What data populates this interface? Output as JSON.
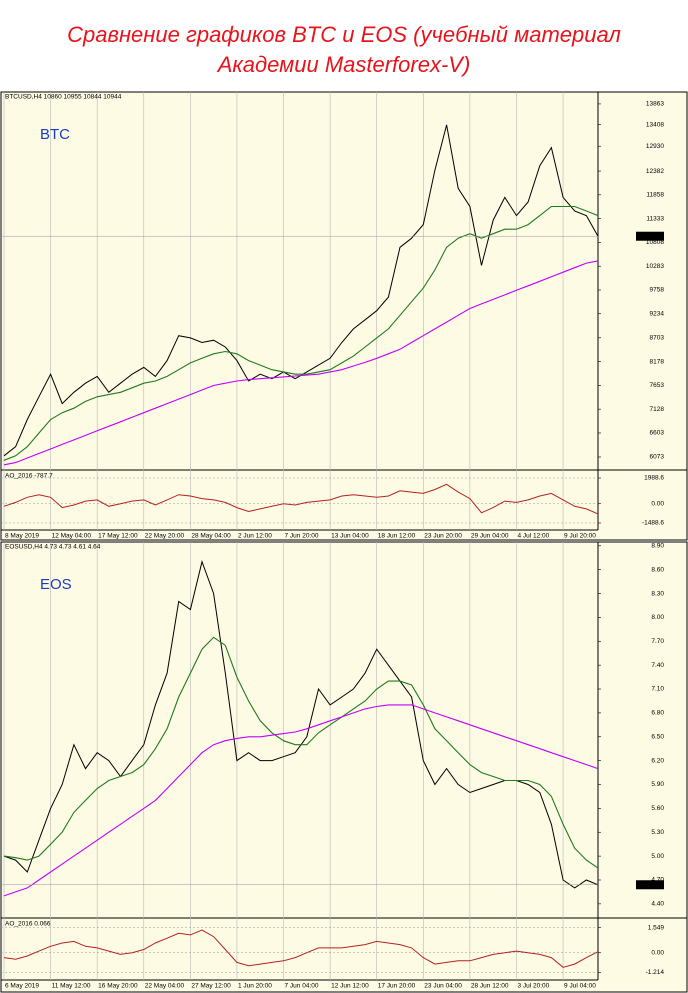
{
  "header": {
    "title_lines": [
      "Сравнение графиков BTC и EOS (учебный материал",
      "Академии Masterforex-V)"
    ]
  },
  "chart_data": [
    {
      "type": "line",
      "label": "BTC",
      "legend_text": "BTCUSD,H4 10860 10955 10844 10944",
      "categories": [
        "8 May 2019",
        null,
        null,
        null,
        "12 May 04:00",
        null,
        null,
        null,
        "17 May 12:00",
        null,
        null,
        null,
        "22 May 20:00",
        null,
        null,
        null,
        "28 May 04:00",
        null,
        null,
        null,
        "2 Jun 12:00",
        null,
        null,
        null,
        "7 Jun 20:00",
        null,
        null,
        null,
        "13 Jun 04:00",
        null,
        null,
        null,
        "18 Jun 12:00",
        null,
        null,
        null,
        "23 Jun 20:00",
        null,
        null,
        null,
        "29 Jun 04:00",
        null,
        null,
        null,
        "4 Jul 12:00",
        null,
        null,
        null,
        "9 Jul 20:00",
        null,
        null,
        null
      ],
      "series": [
        {
          "color": "#000000",
          "values": [
            6100,
            6300,
            6900,
            7400,
            7900,
            7250,
            7500,
            7700,
            7850,
            7500,
            7700,
            7900,
            8050,
            7850,
            8200,
            8750,
            8700,
            8600,
            8650,
            8500,
            8200,
            7750,
            7900,
            7800,
            7950,
            7800,
            7950,
            8100,
            8250,
            8600,
            8900,
            9100,
            9300,
            9600,
            10700,
            10900,
            11200,
            12400,
            13400,
            12000,
            11600,
            10300,
            11300,
            11800,
            11400,
            11700,
            12500,
            12900,
            11800,
            11500,
            11400,
            10944
          ]
        },
        {
          "color": "#1f7a1f",
          "values": [
            6000,
            6100,
            6300,
            6600,
            6900,
            7050,
            7150,
            7300,
            7400,
            7450,
            7500,
            7600,
            7700,
            7750,
            7850,
            8000,
            8150,
            8250,
            8350,
            8400,
            8350,
            8200,
            8100,
            8000,
            7950,
            7900,
            7900,
            7950,
            8000,
            8150,
            8300,
            8500,
            8700,
            8900,
            9200,
            9500,
            9800,
            10200,
            10700,
            10900,
            11000,
            10900,
            11000,
            11100,
            11100,
            11200,
            11400,
            11600,
            11600,
            11600,
            11500,
            11400
          ]
        },
        {
          "color": "#c000ff",
          "values": [
            5900,
            5950,
            6050,
            6150,
            6250,
            6350,
            6450,
            6550,
            6650,
            6750,
            6850,
            6950,
            7050,
            7150,
            7250,
            7350,
            7450,
            7550,
            7650,
            7700,
            7750,
            7780,
            7800,
            7820,
            7840,
            7860,
            7880,
            7900,
            7950,
            8000,
            8080,
            8160,
            8250,
            8350,
            8450,
            8600,
            8750,
            8900,
            9050,
            9200,
            9350,
            9450,
            9550,
            9650,
            9750,
            9850,
            9950,
            10050,
            10150,
            10250,
            10350,
            10400
          ]
        }
      ],
      "ylim": [
        5830,
        14060
      ],
      "yticks": [
        13863,
        13408,
        12930,
        12382,
        11858,
        11333,
        10808,
        10283,
        9758,
        9234,
        8703,
        8178,
        7653,
        7128,
        6603,
        6073
      ],
      "xgrid": true,
      "last_value_tag": true
    },
    {
      "type": "line",
      "legend_text": "AO_2016 -787.7",
      "series": [
        {
          "color": "#b22222",
          "values": [
            -200,
            100,
            500,
            700,
            500,
            -300,
            -100,
            200,
            300,
            -200,
            0,
            200,
            300,
            -100,
            300,
            700,
            600,
            400,
            300,
            100,
            -300,
            -600,
            -400,
            -200,
            0,
            -100,
            100,
            200,
            300,
            600,
            700,
            600,
            500,
            600,
            1000,
            900,
            800,
            1100,
            1500,
            900,
            400,
            -700,
            -300,
            200,
            100,
            300,
            600,
            800,
            300,
            -200,
            -400,
            -787.7
          ]
        }
      ],
      "ylim": [
        -1800,
        2300
      ],
      "yticks": [
        1988.6,
        {
          "value": 0,
          "label": "0.00"
        },
        -1488.6
      ],
      "ygrid": true
    },
    {
      "type": "line",
      "label": "EOS",
      "legend_text": "EOSUSD,H4 4.73 4.73 4.61 4.64",
      "categories": [
        "6 May 2019",
        null,
        null,
        null,
        "11 May 12:00",
        null,
        null,
        null,
        "16 May 20:00",
        null,
        null,
        null,
        "22 May 04:00",
        null,
        null,
        null,
        "27 May 12:00",
        null,
        null,
        null,
        "1 Jun 20:00",
        null,
        null,
        null,
        "7 Jun 04:00",
        null,
        null,
        null,
        "12 Jun 12:00",
        null,
        null,
        null,
        "17 Jun 20:00",
        null,
        null,
        null,
        "23 Jun 04:00",
        null,
        null,
        null,
        "28 Jun 12:00",
        null,
        null,
        null,
        "3 Jul 20:00",
        null,
        null,
        null,
        "9 Jul 04:00",
        null,
        null,
        null
      ],
      "series": [
        {
          "color": "#000000",
          "values": [
            5.0,
            4.95,
            4.8,
            5.2,
            5.6,
            5.9,
            6.4,
            6.1,
            6.3,
            6.2,
            6.0,
            6.2,
            6.4,
            6.9,
            7.3,
            8.2,
            8.1,
            8.7,
            8.3,
            7.3,
            6.2,
            6.3,
            6.2,
            6.2,
            6.25,
            6.3,
            6.5,
            7.1,
            6.9,
            7.0,
            7.1,
            7.3,
            7.6,
            7.4,
            7.2,
            7.0,
            6.2,
            5.9,
            6.1,
            5.9,
            5.8,
            5.85,
            5.9,
            5.95,
            5.95,
            5.9,
            5.8,
            5.4,
            4.7,
            4.6,
            4.7,
            4.64
          ]
        },
        {
          "color": "#1f7a1f",
          "values": [
            5.0,
            4.98,
            4.95,
            5.0,
            5.15,
            5.3,
            5.55,
            5.7,
            5.85,
            5.95,
            6.0,
            6.05,
            6.15,
            6.35,
            6.6,
            7.0,
            7.3,
            7.6,
            7.75,
            7.65,
            7.25,
            6.95,
            6.7,
            6.55,
            6.45,
            6.4,
            6.4,
            6.55,
            6.65,
            6.75,
            6.85,
            6.95,
            7.1,
            7.2,
            7.2,
            7.15,
            6.9,
            6.6,
            6.45,
            6.3,
            6.15,
            6.05,
            6.0,
            5.95,
            5.95,
            5.95,
            5.9,
            5.75,
            5.4,
            5.1,
            4.95,
            4.85
          ]
        },
        {
          "color": "#c000ff",
          "values": [
            4.5,
            4.55,
            4.6,
            4.7,
            4.8,
            4.9,
            5.0,
            5.1,
            5.2,
            5.3,
            5.4,
            5.5,
            5.6,
            5.7,
            5.85,
            6.0,
            6.15,
            6.3,
            6.4,
            6.45,
            6.48,
            6.5,
            6.5,
            6.52,
            6.54,
            6.56,
            6.6,
            6.65,
            6.7,
            6.75,
            6.8,
            6.85,
            6.88,
            6.9,
            6.9,
            6.9,
            6.85,
            6.8,
            6.75,
            6.7,
            6.65,
            6.6,
            6.55,
            6.5,
            6.45,
            6.4,
            6.35,
            6.3,
            6.25,
            6.2,
            6.15,
            6.1
          ]
        }
      ],
      "ylim": [
        4.26,
        8.91
      ],
      "yticks": [
        {
          "value": 8.9,
          "label": "8.90"
        },
        {
          "value": 8.6,
          "label": "8.60"
        },
        {
          "value": 8.3,
          "label": "8.30"
        },
        {
          "value": 8.0,
          "label": "8.00"
        },
        {
          "value": 7.7,
          "label": "7.70"
        },
        {
          "value": 7.4,
          "label": "7.40"
        },
        {
          "value": 7.1,
          "label": "7.10"
        },
        {
          "value": 6.8,
          "label": "6.80"
        },
        {
          "value": 6.5,
          "label": "6.50"
        },
        {
          "value": 6.2,
          "label": "6.20"
        },
        {
          "value": 5.9,
          "label": "5.90"
        },
        {
          "value": 5.6,
          "label": "5.60"
        },
        {
          "value": 5.3,
          "label": "5.30"
        },
        {
          "value": 5.0,
          "label": "5.00"
        },
        {
          "value": 4.7,
          "label": "4.70"
        },
        {
          "value": 4.4,
          "label": "4.40"
        }
      ],
      "xgrid": true,
      "last_value_tag": true
    },
    {
      "type": "line",
      "legend_text": "AO_2016 0.066",
      "series": [
        {
          "color": "#b22222",
          "values": [
            -0.3,
            -0.4,
            -0.2,
            0.1,
            0.4,
            0.6,
            0.7,
            0.4,
            0.3,
            0.1,
            -0.1,
            0,
            0.2,
            0.6,
            0.9,
            1.2,
            1.1,
            1.4,
            1.0,
            0.2,
            -0.6,
            -0.8,
            -0.7,
            -0.6,
            -0.5,
            -0.3,
            0,
            0.3,
            0.3,
            0.3,
            0.4,
            0.5,
            0.7,
            0.6,
            0.5,
            0.3,
            -0.3,
            -0.7,
            -0.6,
            -0.5,
            -0.5,
            -0.3,
            -0.1,
            0,
            0.1,
            0,
            -0.1,
            -0.3,
            -0.9,
            -0.7,
            -0.3,
            0.066
          ]
        }
      ],
      "ylim": [
        -1.5,
        1.9
      ],
      "yticks": [
        1.549,
        {
          "value": 0,
          "label": "0.00"
        },
        -1.214
      ],
      "ygrid": true
    }
  ]
}
